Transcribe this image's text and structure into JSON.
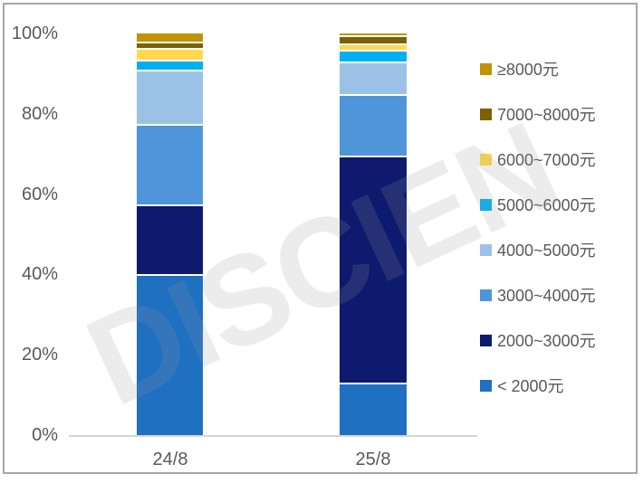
{
  "watermark": {
    "text": "DISCIEN"
  },
  "chart_data": {
    "type": "bar",
    "stacked": true,
    "percent": true,
    "title": "",
    "xlabel": "",
    "ylabel": "",
    "categories": [
      "24/8",
      "25/8"
    ],
    "series": [
      {
        "name": "≥8000元",
        "color": "#C29200",
        "values": [
          2,
          0.5
        ]
      },
      {
        "name": "7000~8000元",
        "color": "#7F6000",
        "values": [
          1.5,
          2
        ]
      },
      {
        "name": "6000~7000元",
        "color": "#FFD94D",
        "values": [
          3,
          1.5
        ]
      },
      {
        "name": "5000~6000元",
        "color": "#00B0F0",
        "values": [
          2.5,
          3
        ]
      },
      {
        "name": "4000~5000元",
        "color": "#9BC2E6",
        "values": [
          13.5,
          8
        ]
      },
      {
        "name": "3000~4000元",
        "color": "#4E96D9",
        "values": [
          20,
          15.5
        ]
      },
      {
        "name": "2000~3000元",
        "color": "#0E1A6E",
        "values": [
          17.5,
          56.5
        ]
      },
      {
        "name": "< 2000元",
        "color": "#1F70C1",
        "values": [
          40,
          13
        ]
      }
    ],
    "y_ticks": [
      "100%",
      "80%",
      "60%",
      "40%",
      "20%",
      "0%"
    ],
    "ylim": [
      0,
      100
    ],
    "grid": false,
    "legend_position": "right",
    "axis_color": "#d4d4d4",
    "tick_label_color": "#595959",
    "separator_color": "#ffffff",
    "border_color": "#a7a7a7"
  }
}
